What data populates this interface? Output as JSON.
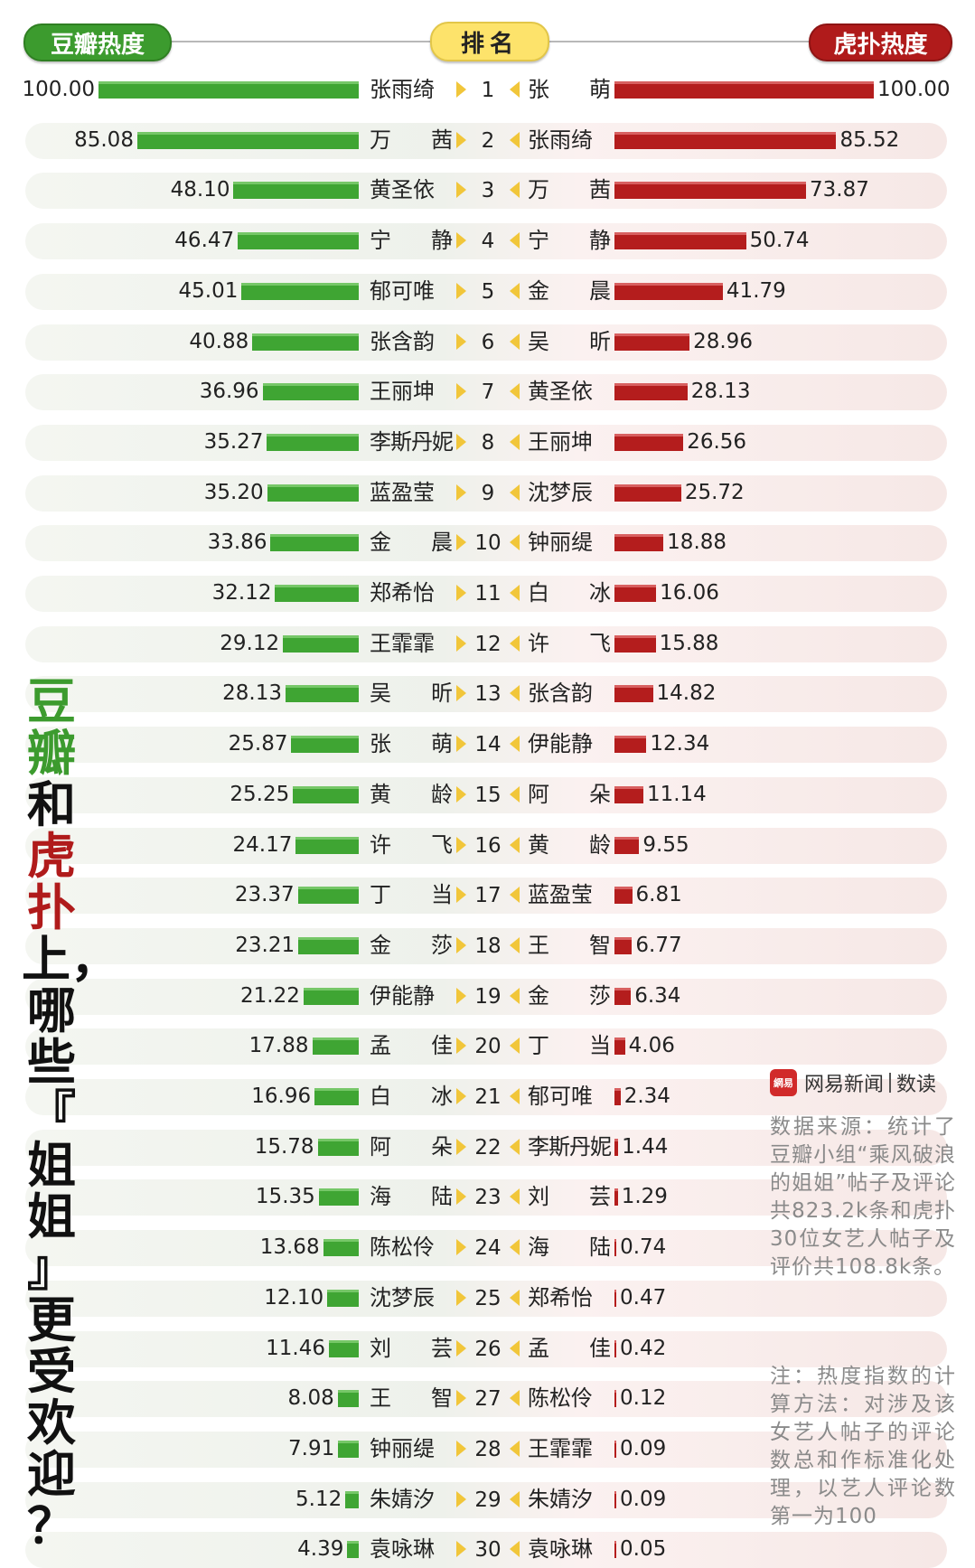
{
  "header": {
    "left_title": "豆瓣热度",
    "center_title": "排名",
    "right_title": "虎扑热度"
  },
  "side_title": {
    "line1": "豆",
    "line2": "瓣",
    "line3": "和",
    "line4": "虎",
    "line5": "扑",
    "line6": "上，",
    "line7": "哪",
    "line8": "些",
    "line9": "『",
    "line10": "姐",
    "line11": "姐",
    "line12": "』",
    "line13": "更",
    "line14": "受",
    "line15": "欢",
    "line16": "迎",
    "line17": "？"
  },
  "logo": {
    "icon_text": "網易",
    "brand": "网易新闻",
    "column": "数读"
  },
  "notes": {
    "source": "数据来源：统计了豆瓣小组“乘风破浪的姐姐”帖子及评论共823.2k条和虎扑30位女艺人帖子及评价共108.8k条。",
    "method": "注：热度指数的计算方法：对涉及该女艺人帖子的评论数总和作标准化处理，以艺人评论数第一为100"
  },
  "colors": {
    "douban": "#3c9b2e",
    "hupu": "#b01b1b",
    "rank_pill": "#fde36b"
  },
  "chart_data": {
    "type": "bar",
    "title": "豆瓣和虎扑上，哪些『姐姐』更受欢迎？",
    "ranks": [
      1,
      2,
      3,
      4,
      5,
      6,
      7,
      8,
      9,
      10,
      11,
      12,
      13,
      14,
      15,
      16,
      17,
      18,
      19,
      20,
      21,
      22,
      23,
      24,
      25,
      26,
      27,
      28,
      29,
      30
    ],
    "series": [
      {
        "name": "豆瓣热度",
        "names": [
          "张雨绮",
          "万茜",
          "黄圣依",
          "宁静",
          "郁可唯",
          "张含韵",
          "王丽坤",
          "李斯丹妮",
          "蓝盈莹",
          "金晨",
          "郑希怡",
          "王霏霏",
          "吴昕",
          "张萌",
          "黄龄",
          "许飞",
          "丁当",
          "金莎",
          "伊能静",
          "孟佳",
          "白冰",
          "阿朵",
          "海陆",
          "陈松伶",
          "沈梦辰",
          "刘芸",
          "王智",
          "钟丽缇",
          "朱婧汐",
          "袁咏琳"
        ],
        "values": [
          "100.00",
          "85.08",
          "48.10",
          "46.47",
          "45.01",
          "40.88",
          "36.96",
          "35.27",
          "35.20",
          "33.86",
          "32.12",
          "29.12",
          "28.13",
          "25.87",
          "25.25",
          "24.17",
          "23.37",
          "23.21",
          "21.22",
          "17.88",
          "16.96",
          "15.78",
          "15.35",
          "13.68",
          "12.10",
          "11.46",
          "8.08",
          "7.91",
          "5.12",
          "4.39"
        ]
      },
      {
        "name": "虎扑热度",
        "names": [
          "张萌",
          "张雨绮",
          "万茜",
          "宁静",
          "金晨",
          "吴昕",
          "黄圣依",
          "王丽坤",
          "沈梦辰",
          "钟丽缇",
          "白冰",
          "许飞",
          "张含韵",
          "伊能静",
          "阿朵",
          "黄龄",
          "蓝盈莹",
          "王智",
          "金莎",
          "丁当",
          "郁可唯",
          "李斯丹妮",
          "刘芸",
          "海陆",
          "郑希怡",
          "孟佳",
          "陈松伶",
          "王霏霏",
          "朱婧汐",
          "袁咏琳"
        ],
        "values": [
          "100.00",
          "85.52",
          "73.87",
          "50.74",
          "41.79",
          "28.96",
          "28.13",
          "26.56",
          "25.72",
          "18.88",
          "16.06",
          "15.88",
          "14.82",
          "12.34",
          "11.14",
          "9.55",
          "6.81",
          "6.77",
          "6.34",
          "4.06",
          "2.34",
          "1.44",
          "1.29",
          "0.74",
          "0.47",
          "0.42",
          "0.12",
          "0.09",
          "0.09",
          "0.05"
        ]
      }
    ],
    "xlim": [
      0,
      100
    ]
  }
}
